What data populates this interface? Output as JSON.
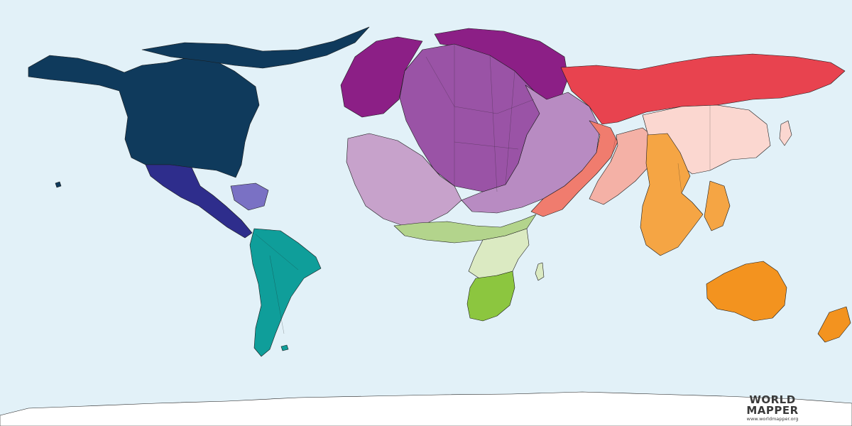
{
  "logo": {
    "line1": "WORLD",
    "line2": "MAPPER",
    "url": "www.worldmapper.org"
  },
  "colors": {
    "ocean": "#e2f1f8",
    "north_america": "#0f3a5c",
    "central_america": "#2e2d8c",
    "caribbean": "#7a71c4",
    "south_america": "#0f9e9a",
    "northern_europe": "#8c1f86",
    "western_europe": "#9a53a6",
    "eastern_europe": "#b88bc2",
    "north_africa": "#c7a2cb",
    "russia": "#e8434f",
    "central_asia": "#f07c6e",
    "south_asia": "#f4b1a6",
    "east_asia": "#fbd7d0",
    "southeast_asia": "#f5a544",
    "oceania": "#f3931f",
    "sahel": "#b3d48c",
    "east_africa": "#dbeac2",
    "southern_africa": "#8cc63f",
    "antarctica": "#ffffff"
  }
}
